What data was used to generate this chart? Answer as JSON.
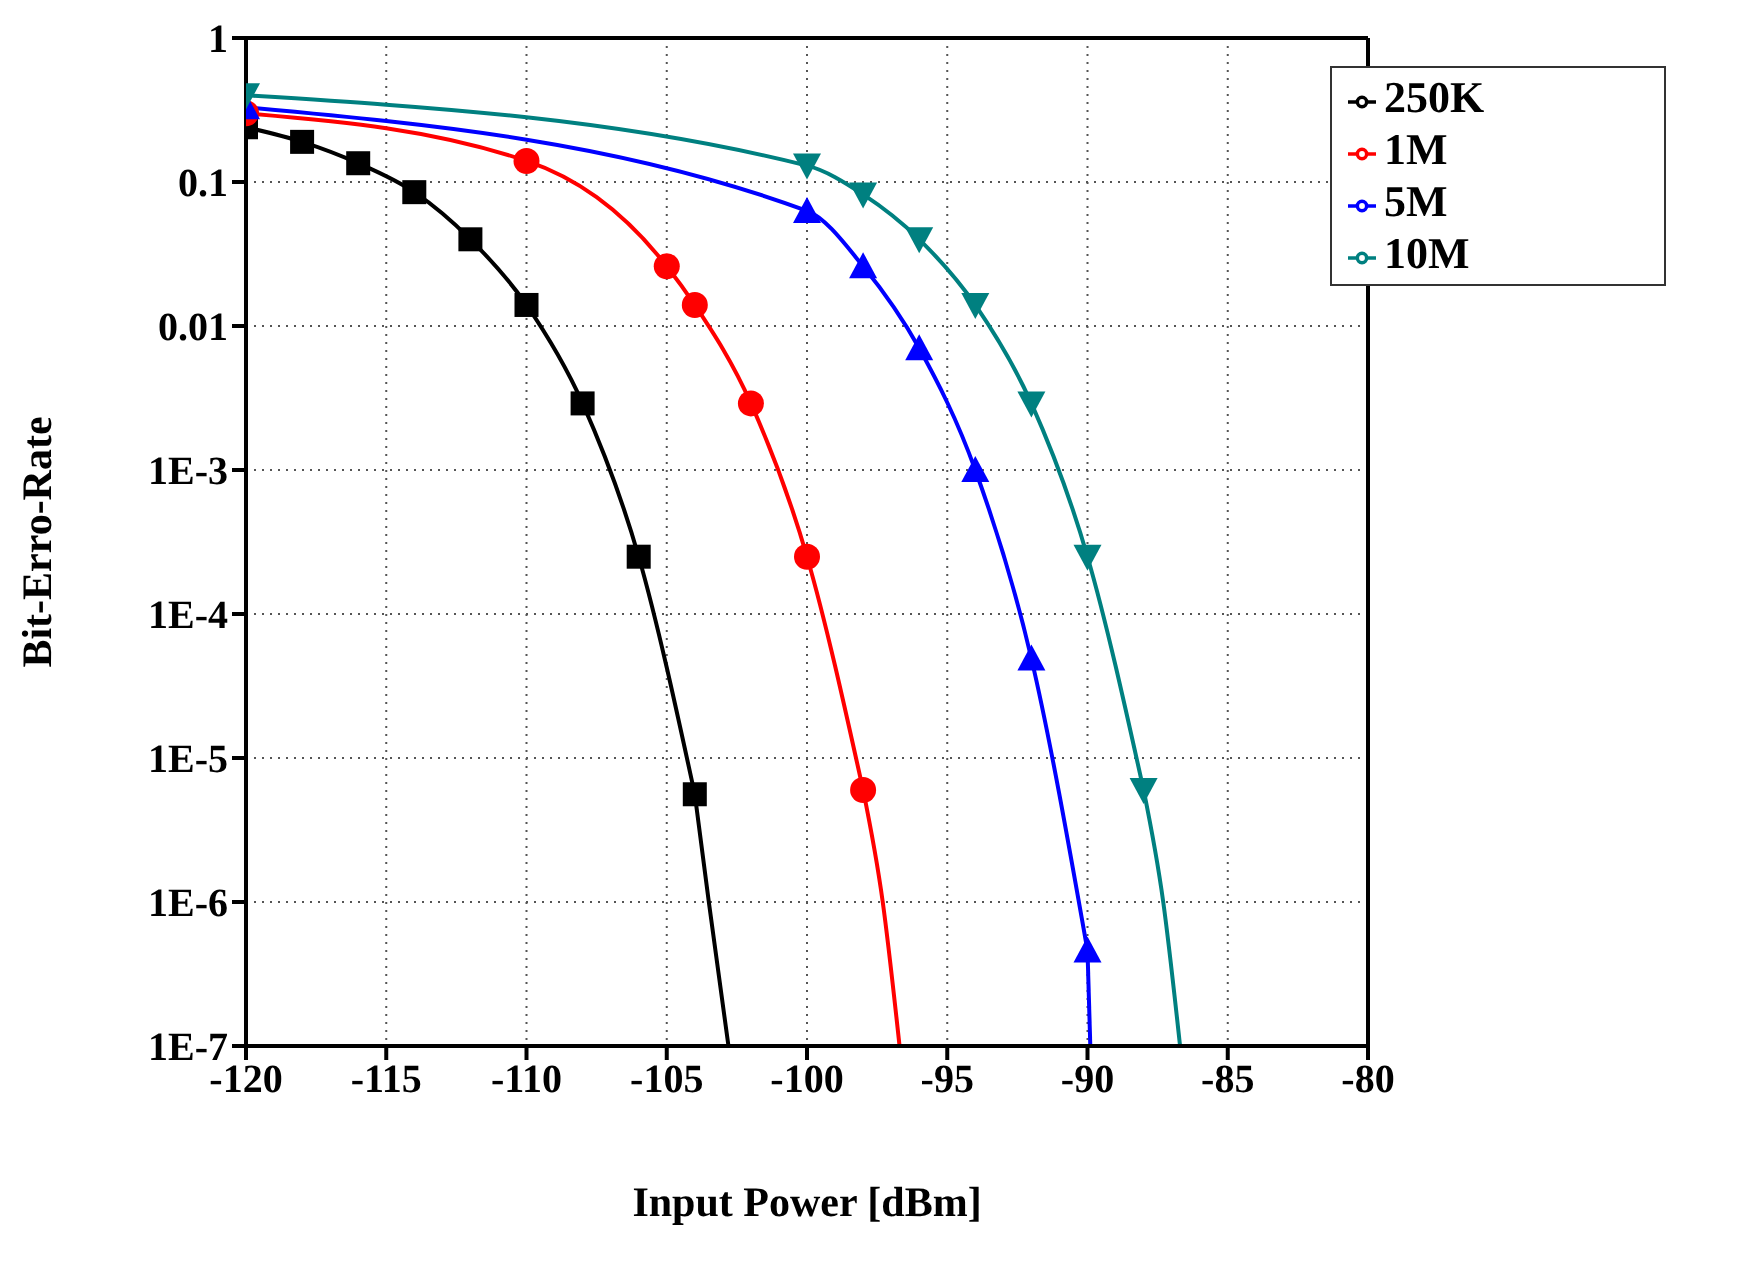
{
  "chart_data": {
    "type": "line",
    "xlabel": "Input Power [dBm]",
    "ylabel": "Bit-Erro-Rate",
    "log": "y",
    "xlim": [
      -120,
      -80
    ],
    "xticks": [
      -120,
      -115,
      -110,
      -105,
      -100,
      -95,
      -90,
      -85,
      -80
    ],
    "ylim": [
      1e-07,
      1
    ],
    "yticks": [
      1,
      0.1,
      0.01,
      {
        "value": 0.001,
        "label": "1E-3"
      },
      {
        "value": 0.0001,
        "label": "1E-4"
      },
      {
        "value": 1e-05,
        "label": "1E-5"
      },
      {
        "value": 1e-06,
        "label": "1E-6"
      },
      {
        "value": 1e-07,
        "label": "1E-7"
      }
    ],
    "grid": true,
    "legend": "top right",
    "line_style": "solid",
    "series": [
      {
        "name": "250K",
        "color": "#000000",
        "marker": "square",
        "x": [
          -120,
          -118,
          -116,
          -114,
          -112,
          -110,
          -108,
          -106,
          -104
        ],
        "values": [
          0.24,
          0.19,
          0.135,
          0.085,
          0.04,
          0.014,
          0.0029,
          0.00025,
          5.6e-06
        ]
      },
      {
        "name": "1M",
        "color": "#ff0000",
        "marker": "circle",
        "x": [
          -120,
          -110,
          -105,
          -104,
          -102,
          -100,
          -98
        ],
        "values": [
          0.3,
          0.14,
          0.026,
          0.014,
          0.0029,
          0.00025,
          6e-06
        ]
      },
      {
        "name": "5M",
        "color": "#0000ff",
        "marker": "triangle",
        "x": [
          -120,
          -100,
          -98,
          -96,
          -94,
          -92,
          -90
        ],
        "values": [
          0.33,
          0.063,
          0.026,
          0.007,
          0.001,
          4.9e-05,
          4.6e-07
        ]
      },
      {
        "name": "10M",
        "color": "#008080",
        "marker": "triangle-down",
        "x": [
          -120,
          -100,
          -98,
          -96,
          -94,
          -92,
          -90,
          -88
        ],
        "values": [
          0.4,
          0.13,
          0.082,
          0.04,
          0.014,
          0.0029,
          0.00025,
          6e-06
        ]
      },
      {
        "color": "#000000",
        "marker": "none",
        "x": [
          -104,
          -103.5,
          -102.8
        ],
        "values": [
          5.6e-06,
          1e-06,
          1e-07
        ]
      },
      {
        "color": "#ff0000",
        "marker": "none",
        "x": [
          -98,
          -97.3,
          -96.7
        ],
        "values": [
          6e-06,
          1e-06,
          1e-07
        ]
      },
      {
        "color": "#0000ff",
        "marker": "none",
        "x": [
          -90,
          -89.9
        ],
        "values": [
          4.6e-07,
          1e-07
        ]
      },
      {
        "color": "#008080",
        "marker": "none",
        "x": [
          -88,
          -87.3,
          -86.7
        ],
        "values": [
          6e-06,
          1e-06,
          1e-07
        ]
      }
    ]
  }
}
